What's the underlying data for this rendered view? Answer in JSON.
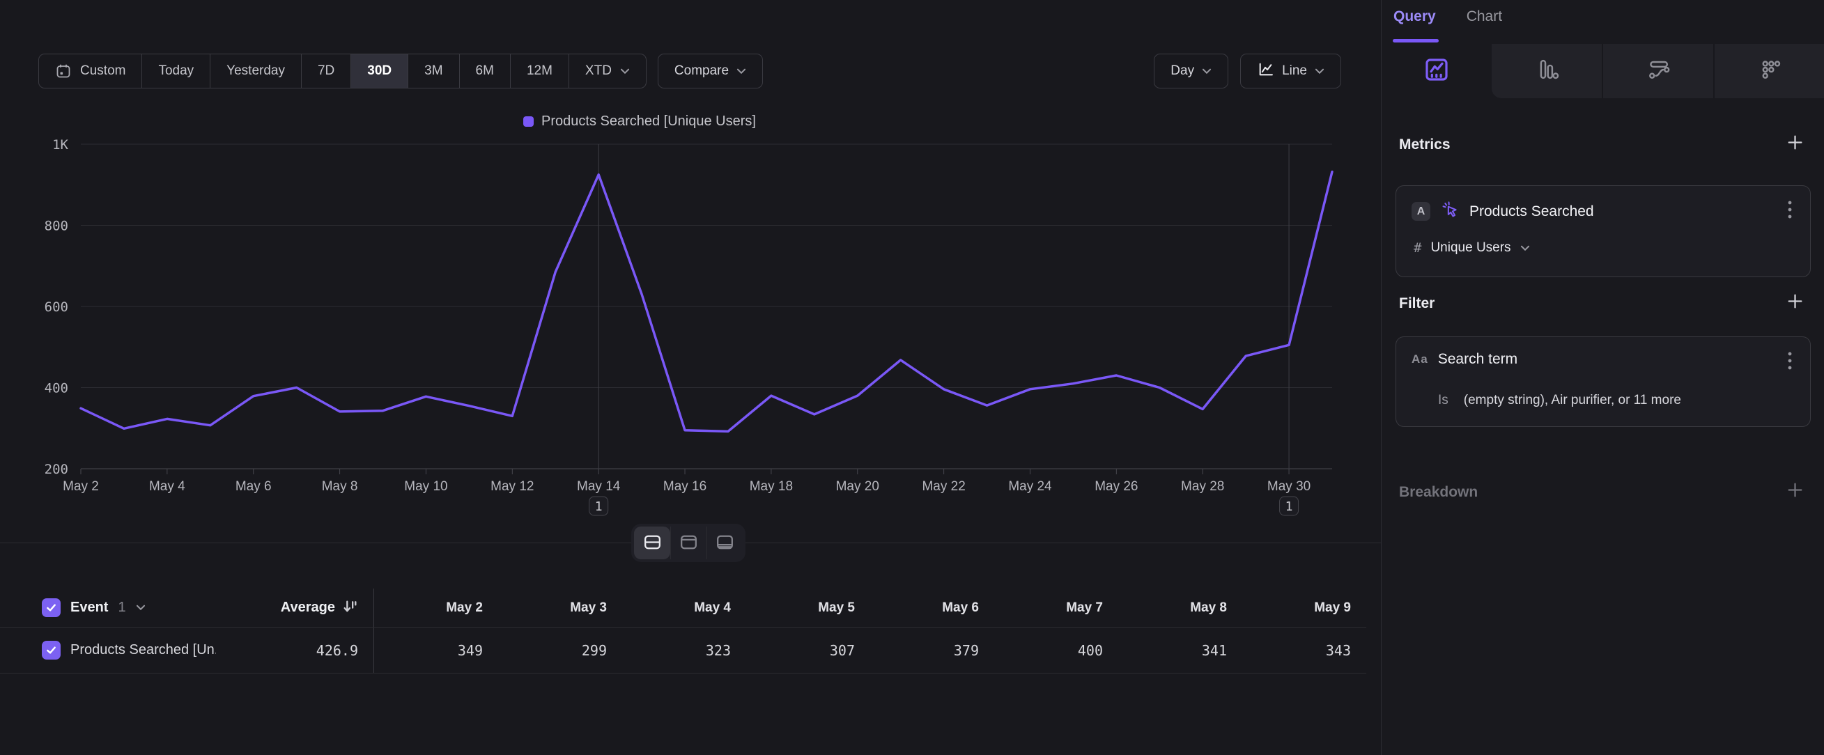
{
  "toolbar": {
    "range_buttons": [
      "Custom",
      "Today",
      "Yesterday",
      "7D",
      "30D",
      "3M",
      "6M",
      "12M",
      "XTD"
    ],
    "active_range": "30D",
    "compare_label": "Compare",
    "granularity_label": "Day",
    "chart_type_label": "Line"
  },
  "chart_data": {
    "type": "line",
    "legend": "Products Searched [Unique Users]",
    "categories": [
      "May 2",
      "May 3",
      "May 4",
      "May 5",
      "May 6",
      "May 7",
      "May 8",
      "May 9",
      "May 10",
      "May 11",
      "May 12",
      "May 13",
      "May 14",
      "May 15",
      "May 16",
      "May 17",
      "May 18",
      "May 19",
      "May 20",
      "May 21",
      "May 22",
      "May 23",
      "May 24",
      "May 25",
      "May 26",
      "May 27",
      "May 28",
      "May 29",
      "May 30",
      "May 31"
    ],
    "values": [
      349,
      299,
      323,
      307,
      379,
      400,
      341,
      343,
      378,
      355,
      330,
      685,
      925,
      630,
      295,
      292,
      380,
      334,
      380,
      468,
      396,
      356,
      396,
      410,
      430,
      400,
      347,
      478,
      505,
      932
    ],
    "ylim": [
      200,
      1000
    ],
    "ytick_values": [
      200,
      400,
      600,
      800,
      1000
    ],
    "ytick_labels": [
      "200",
      "400",
      "600",
      "800",
      "1K"
    ],
    "x_tick_step": 2,
    "grid": "horizontal",
    "legend_position": "top-center",
    "series_color": "#7a58f7",
    "annotations": [
      {
        "index": 12,
        "category": "May 14",
        "label": "1"
      },
      {
        "index": 28,
        "category": "May 30",
        "label": "1"
      }
    ]
  },
  "layout_toggles": [
    "split-view",
    "chart-only",
    "table-only"
  ],
  "table": {
    "event_label": "Event",
    "event_count": "1",
    "average_label": "Average",
    "average_value": "426.9",
    "row_label": "Products Searched [Un...",
    "columns": [
      "May 2",
      "May 3",
      "May 4",
      "May 5",
      "May 6",
      "May 7",
      "May 8",
      "May 9"
    ],
    "values": [
      "349",
      "299",
      "323",
      "307",
      "379",
      "400",
      "341",
      "343"
    ]
  },
  "panel": {
    "tabs": {
      "query": "Query",
      "chart": "Chart",
      "active": "Query"
    },
    "icon_tabs": [
      "insights",
      "bar-chart",
      "flows",
      "retention"
    ],
    "metrics": {
      "header": "Metrics",
      "card": {
        "letter_badge": "A",
        "event_name": "Products Searched",
        "agg_prefix": "#",
        "agg_label": "Unique Users"
      }
    },
    "filter": {
      "header": "Filter",
      "card": {
        "type_icon": "Aa",
        "property_name": "Search term",
        "operator": "Is",
        "value": "(empty string), Air purifier, or 11 more"
      }
    },
    "breakdown": {
      "header": "Breakdown"
    }
  },
  "colors": {
    "accent_purple": "#7a58f7",
    "checkbox_purple": "#7c61f2",
    "background": "#18181d",
    "card_background": "#1d1d23",
    "grid_line": "#2c2c32",
    "axis_line": "#47474e"
  }
}
